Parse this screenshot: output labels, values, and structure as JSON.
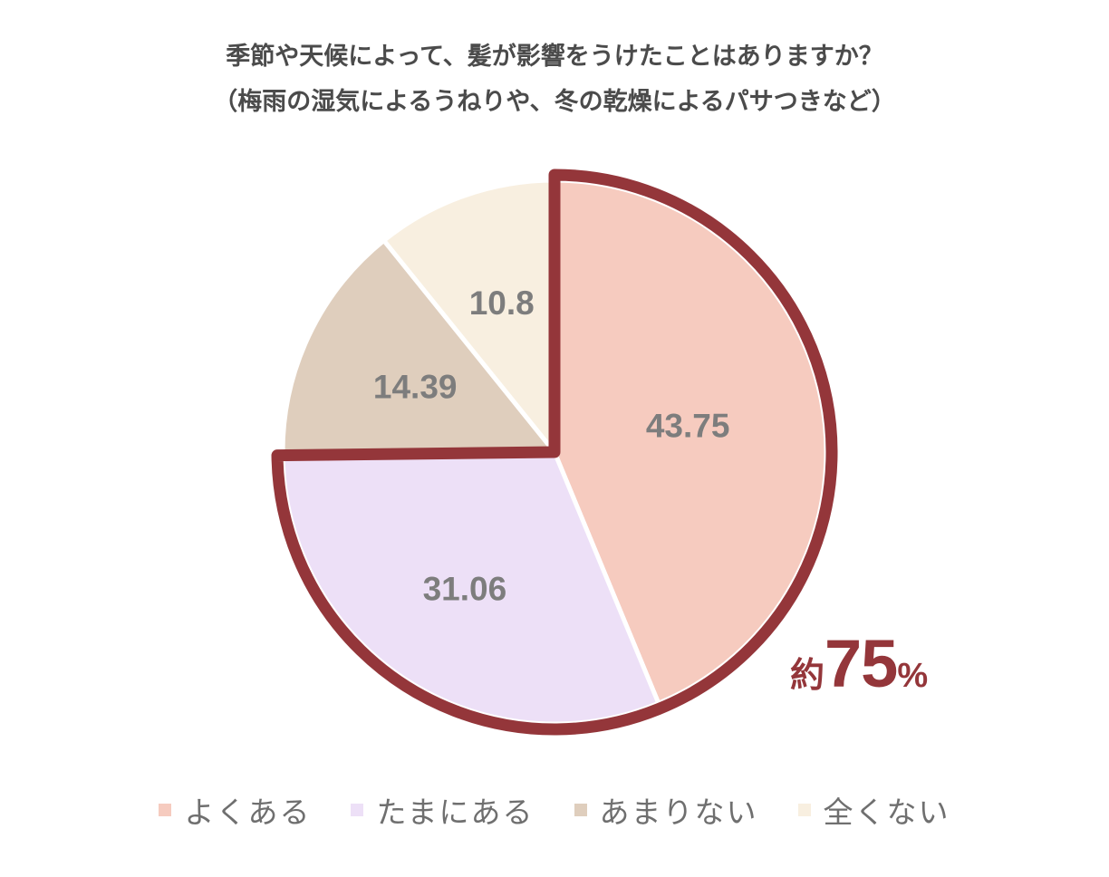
{
  "title": {
    "line1": "季節や天候によって、髪が影響をうけたことはありますか？",
    "line2": "（梅雨の湿気によるうねりや、冬の乾燥によるパサつきなど）"
  },
  "callout": {
    "prefix": "約",
    "value": "75",
    "unit": "%"
  },
  "colors": {
    "highlight_border": "#94363a",
    "label_text": "#7d7d7d"
  },
  "chart_data": {
    "type": "pie",
    "title": "季節や天候によって、髪が影響をうけたことはありますか？（梅雨の湿気によるうねりや、冬の乾燥によるパサつきなど）",
    "start_angle": "12 o'clock",
    "direction": "clockwise",
    "legend_position": "bottom",
    "slices": [
      {
        "label": "よくある",
        "value": 43.75,
        "display": "43.75",
        "color": "#f6cbbf"
      },
      {
        "label": "たまにある",
        "value": 31.06,
        "display": "31.06",
        "color": "#ede0f7"
      },
      {
        "label": "あまりない",
        "value": 14.39,
        "display": "14.39",
        "color": "#dfcebd"
      },
      {
        "label": "全くない",
        "value": 10.8,
        "display": "10.8",
        "color": "#f8efe0"
      }
    ],
    "highlight": {
      "slices": [
        "よくある",
        "たまにある"
      ],
      "annotation": "約75%"
    }
  }
}
